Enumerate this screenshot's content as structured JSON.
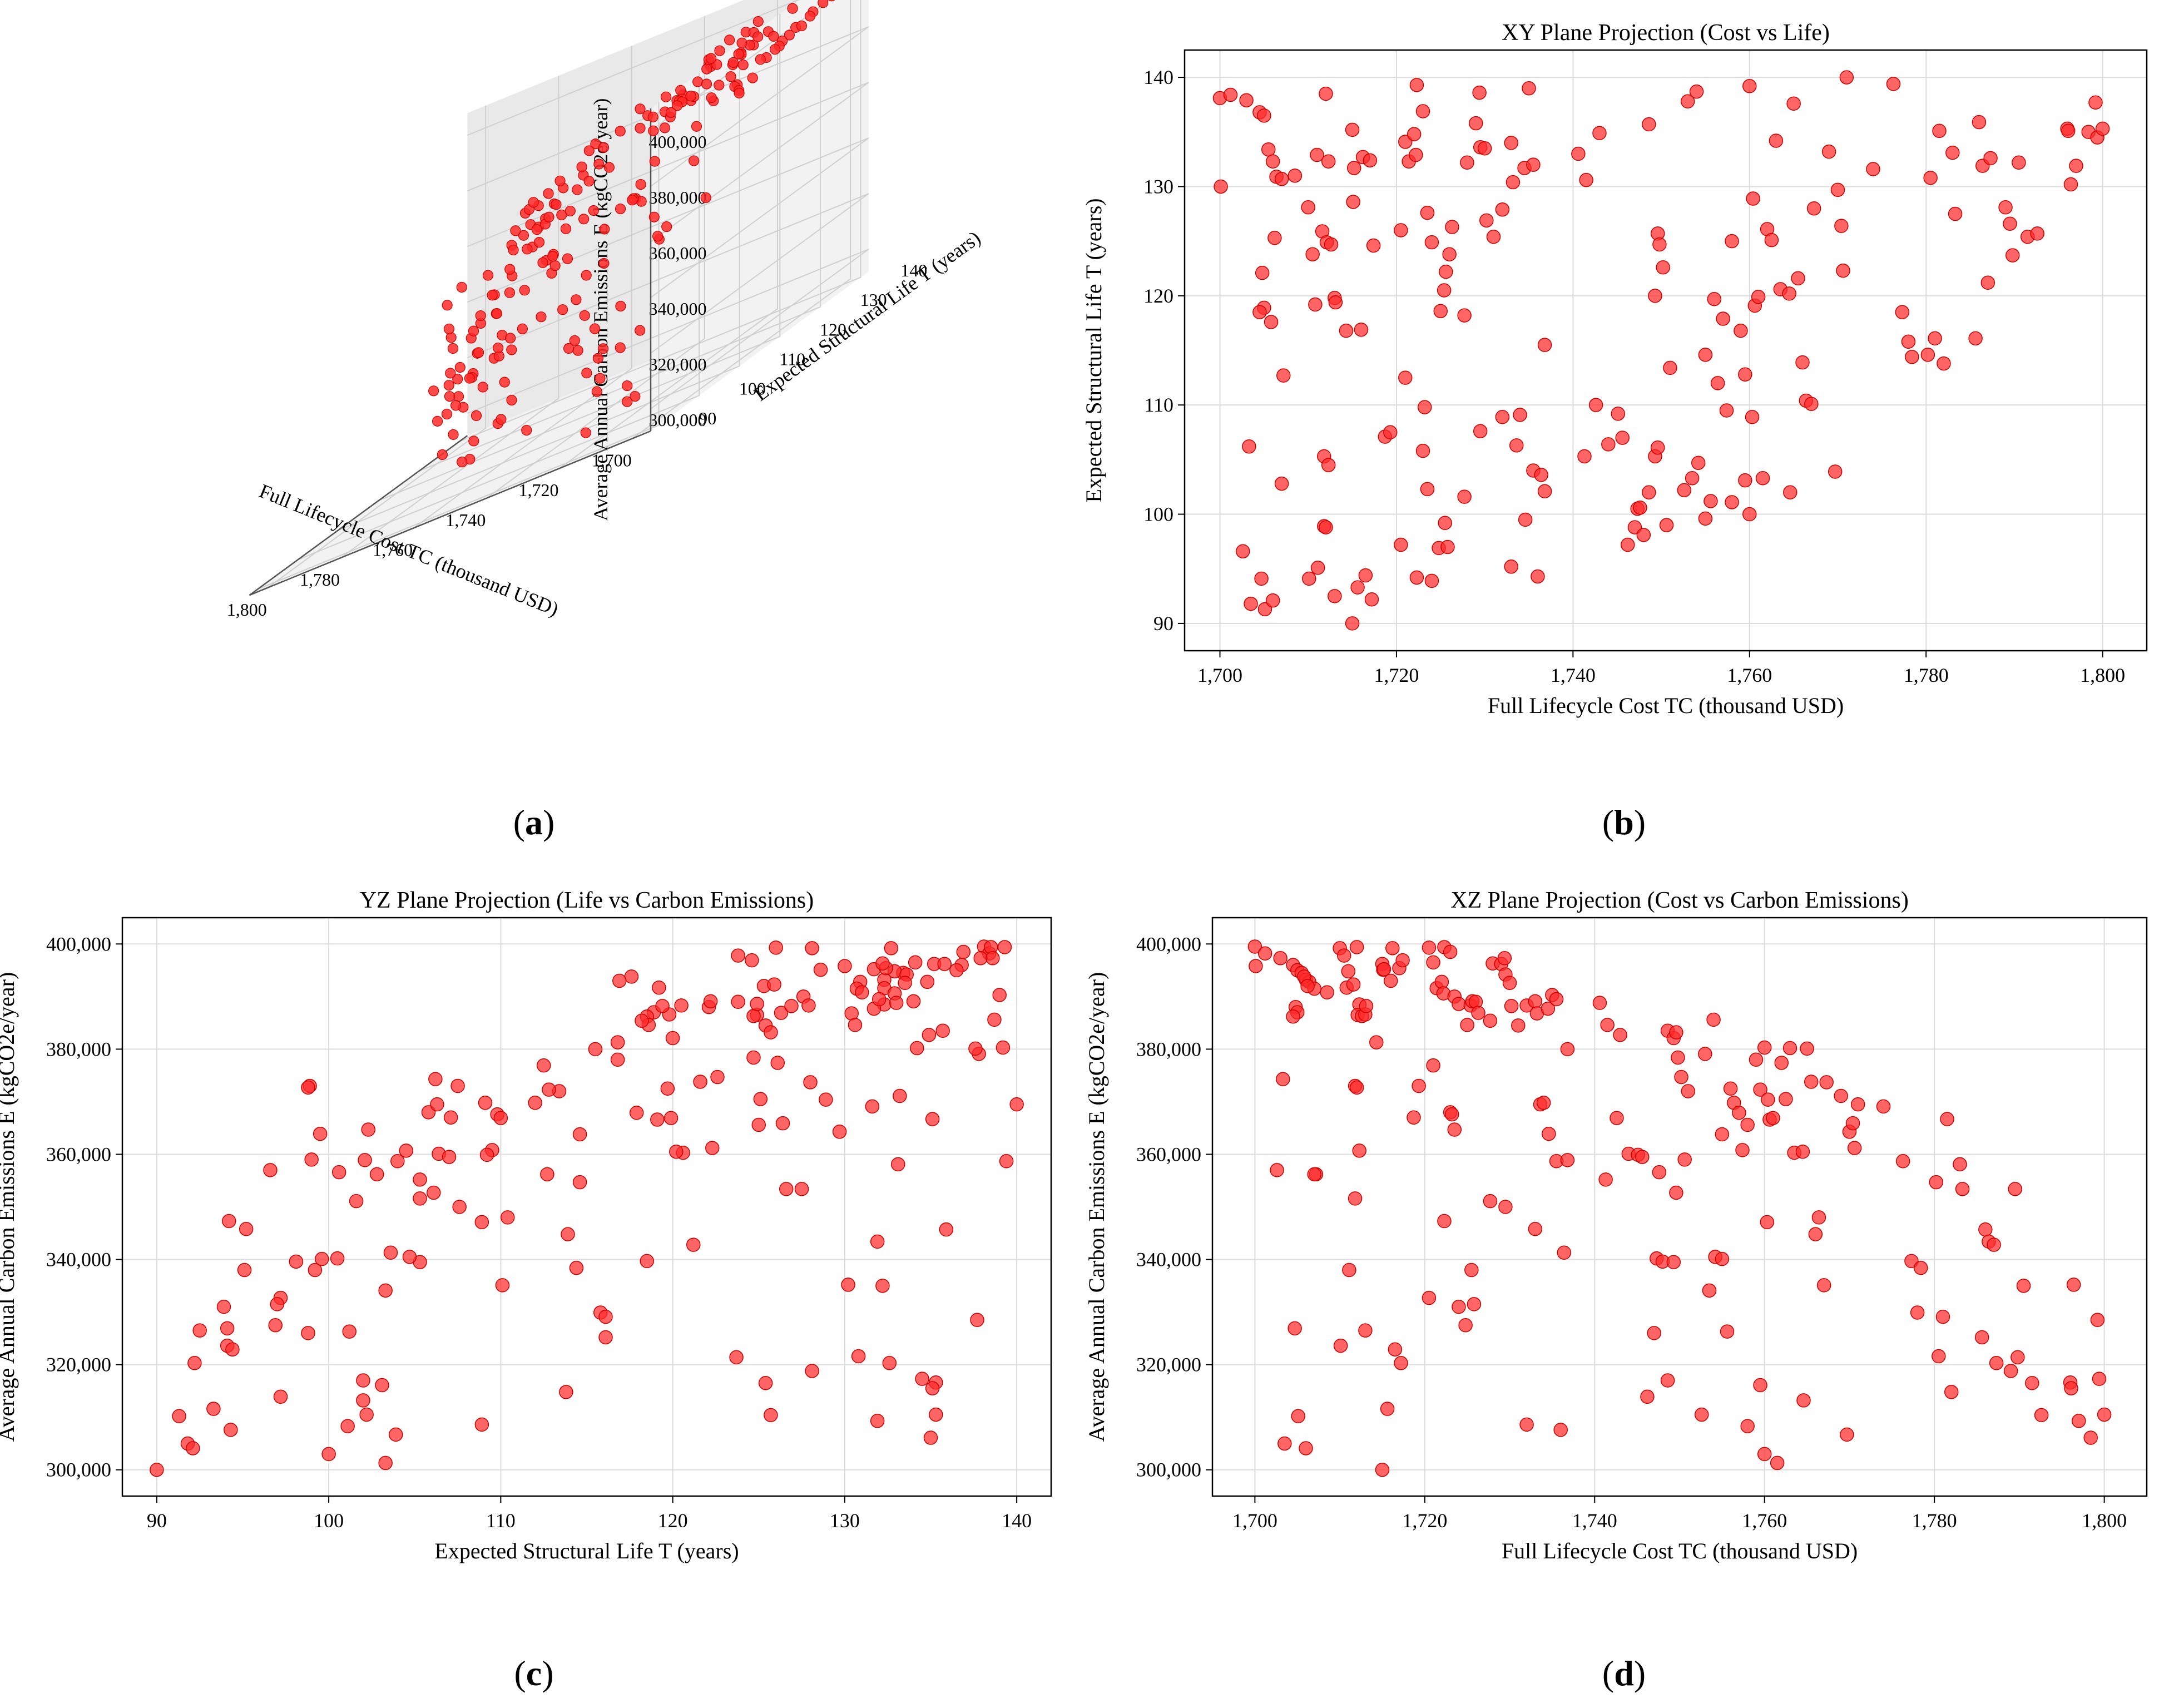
{
  "colors": {
    "point_fill": "#ff2a2a",
    "point_stroke": "#cc0000",
    "grid": "#dcdcdc",
    "axis": "#000000",
    "pane": "#f2f2f2",
    "pane_side": "#e9e9e9"
  },
  "panels": {
    "a": {
      "caption": "a"
    },
    "b": {
      "caption": "b"
    },
    "c": {
      "caption": "c"
    },
    "d": {
      "caption": "d"
    }
  },
  "chart_data": [
    {
      "id": "a",
      "type": "scatter",
      "projection": "3d",
      "title": "",
      "xlabel": "Full Lifecycle Cost TC (thousand USD)",
      "ylabel": "Expected Structural Life T (years)",
      "zlabel": "Average Annual Carbon Emissions E (kgCO2e/year)",
      "xlim": [
        1695,
        1805
      ],
      "ylim": [
        88,
        142
      ],
      "zlim": [
        292000,
        408000
      ],
      "xticks": [
        "1,700",
        "1,720",
        "1,740",
        "1,760",
        "1,780",
        "1,800"
      ],
      "yticks": [
        "90",
        "100",
        "110",
        "120",
        "130",
        "140"
      ],
      "zticks": [
        "300,000",
        "320,000",
        "340,000",
        "360,000",
        "380,000",
        "400,000"
      ],
      "points_ref": "shared_points",
      "grid": true
    },
    {
      "id": "b",
      "type": "scatter",
      "title": "XY Plane Projection (Cost vs Life)",
      "xlabel": "Full Lifecycle Cost TC (thousand USD)",
      "ylabel": "Expected Structural Life T (years)",
      "xlim": [
        1696,
        1805
      ],
      "ylim": [
        87.5,
        142.5
      ],
      "xticks": [
        "1,700",
        "1,720",
        "1,740",
        "1,760",
        "1,780",
        "1,800"
      ],
      "yticks": [
        "90",
        "100",
        "110",
        "120",
        "130",
        "140"
      ],
      "x_field": "tc",
      "y_field": "t",
      "grid": true
    },
    {
      "id": "c",
      "type": "scatter",
      "title": "YZ Plane Projection (Life vs Carbon Emissions)",
      "xlabel": "Expected Structural Life T (years)",
      "ylabel": "Average Annual Carbon Emissions E (kgCO2e/year)",
      "xlim": [
        88,
        142
      ],
      "ylim": [
        295000,
        405000
      ],
      "xticks": [
        "90",
        "100",
        "110",
        "120",
        "130",
        "140"
      ],
      "yticks": [
        "300,000",
        "320,000",
        "340,000",
        "360,000",
        "380,000",
        "400,000"
      ],
      "x_field": "t",
      "y_field": "e",
      "grid": true
    },
    {
      "id": "d",
      "type": "scatter",
      "title": "XZ Plane Projection (Cost vs Carbon Emissions)",
      "xlabel": "Full Lifecycle Cost TC (thousand USD)",
      "ylabel": "Average Annual Carbon Emissions E (kgCO2e/year)",
      "xlim": [
        1695,
        1805
      ],
      "ylim": [
        295000,
        405000
      ],
      "xticks": [
        "1,700",
        "1,720",
        "1,740",
        "1,760",
        "1,780",
        "1,800"
      ],
      "yticks": [
        "300,000",
        "320,000",
        "340,000",
        "360,000",
        "380,000",
        "400,000"
      ],
      "x_field": "tc",
      "y_field": "e",
      "grid": true
    }
  ],
  "shared_points": [
    {
      "tc": 1700.0,
      "t": 138.1,
      "e": 399500
    },
    {
      "tc": 1701.2,
      "t": 138.4,
      "e": 398200
    },
    {
      "tc": 1703.0,
      "t": 137.9,
      "e": 397300
    },
    {
      "tc": 1704.5,
      "t": 136.8,
      "e": 396000
    },
    {
      "tc": 1705.0,
      "t": 136.5,
      "e": 395000
    },
    {
      "tc": 1705.5,
      "t": 133.4,
      "e": 394500
    },
    {
      "tc": 1706.0,
      "t": 132.3,
      "e": 393200
    },
    {
      "tc": 1706.4,
      "t": 130.9,
      "e": 392800
    },
    {
      "tc": 1707.0,
      "t": 130.7,
      "e": 391500
    },
    {
      "tc": 1708.5,
      "t": 131.0,
      "e": 390800
    },
    {
      "tc": 1700.1,
      "t": 130.0,
      "e": 395800
    },
    {
      "tc": 1704.8,
      "t": 122.1,
      "e": 388000
    },
    {
      "tc": 1705.0,
      "t": 118.9,
      "e": 387000
    },
    {
      "tc": 1704.5,
      "t": 118.5,
      "e": 386200
    },
    {
      "tc": 1705.8,
      "t": 117.6,
      "e": 393800
    },
    {
      "tc": 1706.2,
      "t": 125.3,
      "e": 392000
    },
    {
      "tc": 1710.0,
      "t": 128.1,
      "e": 399200
    },
    {
      "tc": 1710.5,
      "t": 123.8,
      "e": 397800
    },
    {
      "tc": 1710.8,
      "t": 119.2,
      "e": 391700
    },
    {
      "tc": 1711.0,
      "t": 132.9,
      "e": 394800
    },
    {
      "tc": 1711.6,
      "t": 125.9,
      "e": 392300
    },
    {
      "tc": 1712.0,
      "t": 138.5,
      "e": 399400
    },
    {
      "tc": 1712.3,
      "t": 132.3,
      "e": 388500
    },
    {
      "tc": 1712.1,
      "t": 124.9,
      "e": 386500
    },
    {
      "tc": 1712.6,
      "t": 124.7,
      "e": 386300
    },
    {
      "tc": 1713.0,
      "t": 119.8,
      "e": 386600
    },
    {
      "tc": 1713.1,
      "t": 119.4,
      "e": 388200
    },
    {
      "tc": 1714.3,
      "t": 116.8,
      "e": 381300
    },
    {
      "tc": 1715.0,
      "t": 135.2,
      "e": 396200
    },
    {
      "tc": 1715.1,
      "t": 128.6,
      "e": 395100
    },
    {
      "tc": 1715.2,
      "t": 131.7,
      "e": 395200
    },
    {
      "tc": 1716.0,
      "t": 116.9,
      "e": 393000
    },
    {
      "tc": 1716.2,
      "t": 132.7,
      "e": 399200
    },
    {
      "tc": 1717.0,
      "t": 132.4,
      "e": 395400
    },
    {
      "tc": 1717.4,
      "t": 124.6,
      "e": 396900
    },
    {
      "tc": 1720.5,
      "t": 126.0,
      "e": 399300
    },
    {
      "tc": 1721.0,
      "t": 134.1,
      "e": 396500
    },
    {
      "tc": 1721.4,
      "t": 132.3,
      "e": 391600
    },
    {
      "tc": 1722.0,
      "t": 134.8,
      "e": 392800
    },
    {
      "tc": 1722.2,
      "t": 132.9,
      "e": 390600
    },
    {
      "tc": 1722.3,
      "t": 139.3,
      "e": 399400
    },
    {
      "tc": 1723.0,
      "t": 136.9,
      "e": 398500
    },
    {
      "tc": 1723.5,
      "t": 127.6,
      "e": 390000
    },
    {
      "tc": 1724.0,
      "t": 124.9,
      "e": 388600
    },
    {
      "tc": 1725.0,
      "t": 118.6,
      "e": 384600
    },
    {
      "tc": 1725.4,
      "t": 120.5,
      "e": 388300
    },
    {
      "tc": 1725.6,
      "t": 122.2,
      "e": 389100
    },
    {
      "tc": 1726.0,
      "t": 123.8,
      "e": 389000
    },
    {
      "tc": 1726.3,
      "t": 126.3,
      "e": 386900
    },
    {
      "tc": 1727.7,
      "t": 118.2,
      "e": 385400
    },
    {
      "tc": 1728.0,
      "t": 132.2,
      "e": 396300
    },
    {
      "tc": 1729.0,
      "t": 135.8,
      "e": 396200
    },
    {
      "tc": 1729.4,
      "t": 138.6,
      "e": 397300
    },
    {
      "tc": 1729.5,
      "t": 133.6,
      "e": 394200
    },
    {
      "tc": 1730.0,
      "t": 133.5,
      "e": 392600
    },
    {
      "tc": 1730.2,
      "t": 126.9,
      "e": 388200
    },
    {
      "tc": 1731.0,
      "t": 125.4,
      "e": 384500
    },
    {
      "tc": 1732.0,
      "t": 127.9,
      "e": 388300
    },
    {
      "tc": 1733.0,
      "t": 134.0,
      "e": 389100
    },
    {
      "tc": 1733.2,
      "t": 130.4,
      "e": 386800
    },
    {
      "tc": 1734.5,
      "t": 131.7,
      "e": 387700
    },
    {
      "tc": 1735.0,
      "t": 139.0,
      "e": 390300
    },
    {
      "tc": 1735.5,
      "t": 132.0,
      "e": 389500
    },
    {
      "tc": 1736.8,
      "t": 115.5,
      "e": 380000
    },
    {
      "tc": 1740.6,
      "t": 133.0,
      "e": 388800
    },
    {
      "tc": 1741.5,
      "t": 130.6,
      "e": 384600
    },
    {
      "tc": 1743.0,
      "t": 134.9,
      "e": 382700
    },
    {
      "tc": 1748.6,
      "t": 135.7,
      "e": 383500
    },
    {
      "tc": 1749.3,
      "t": 120.0,
      "e": 382100
    },
    {
      "tc": 1749.6,
      "t": 125.7,
      "e": 383200
    },
    {
      "tc": 1749.8,
      "t": 124.7,
      "e": 378400
    },
    {
      "tc": 1750.2,
      "t": 122.6,
      "e": 374700
    },
    {
      "tc": 1751.0,
      "t": 113.4,
      "e": 372000
    },
    {
      "tc": 1753.0,
      "t": 137.8,
      "e": 379100
    },
    {
      "tc": 1754.0,
      "t": 138.7,
      "e": 385600
    },
    {
      "tc": 1755.0,
      "t": 114.6,
      "e": 363800
    },
    {
      "tc": 1756.0,
      "t": 119.7,
      "e": 372500
    },
    {
      "tc": 1756.4,
      "t": 112.0,
      "e": 369800
    },
    {
      "tc": 1757.0,
      "t": 117.9,
      "e": 367900
    },
    {
      "tc": 1757.4,
      "t": 109.5,
      "e": 360800
    },
    {
      "tc": 1758.0,
      "t": 125.0,
      "e": 365600
    },
    {
      "tc": 1759.0,
      "t": 116.8,
      "e": 378000
    },
    {
      "tc": 1759.5,
      "t": 112.8,
      "e": 372300
    },
    {
      "tc": 1760.0,
      "t": 139.2,
      "e": 380300
    },
    {
      "tc": 1760.4,
      "t": 128.9,
      "e": 370400
    },
    {
      "tc": 1760.6,
      "t": 119.1,
      "e": 366600
    },
    {
      "tc": 1761.0,
      "t": 119.9,
      "e": 366900
    },
    {
      "tc": 1762.0,
      "t": 126.1,
      "e": 377400
    },
    {
      "tc": 1762.5,
      "t": 125.1,
      "e": 370500
    },
    {
      "tc": 1763.0,
      "t": 134.2,
      "e": 380200
    },
    {
      "tc": 1763.5,
      "t": 120.6,
      "e": 360300
    },
    {
      "tc": 1764.5,
      "t": 120.2,
      "e": 360500
    },
    {
      "tc": 1765.0,
      "t": 137.6,
      "e": 380100
    },
    {
      "tc": 1765.5,
      "t": 121.6,
      "e": 373800
    },
    {
      "tc": 1766.0,
      "t": 113.9,
      "e": 344800
    },
    {
      "tc": 1766.4,
      "t": 110.4,
      "e": 348000
    },
    {
      "tc": 1767.0,
      "t": 110.1,
      "e": 335100
    },
    {
      "tc": 1767.3,
      "t": 128.0,
      "e": 373700
    },
    {
      "tc": 1769.0,
      "t": 133.2,
      "e": 371100
    },
    {
      "tc": 1770.0,
      "t": 129.7,
      "e": 364300
    },
    {
      "tc": 1770.4,
      "t": 126.4,
      "e": 365900
    },
    {
      "tc": 1770.6,
      "t": 122.3,
      "e": 361200
    },
    {
      "tc": 1771.0,
      "t": 140.0,
      "e": 369500
    },
    {
      "tc": 1774.0,
      "t": 131.6,
      "e": 369100
    },
    {
      "tc": 1776.3,
      "t": 139.4,
      "e": 358700
    },
    {
      "tc": 1777.3,
      "t": 118.5,
      "e": 339700
    },
    {
      "tc": 1778.0,
      "t": 115.8,
      "e": 329900
    },
    {
      "tc": 1778.4,
      "t": 114.4,
      "e": 338400
    },
    {
      "tc": 1780.2,
      "t": 114.6,
      "e": 354700
    },
    {
      "tc": 1780.5,
      "t": 130.8,
      "e": 321600
    },
    {
      "tc": 1781.0,
      "t": 116.1,
      "e": 329100
    },
    {
      "tc": 1781.5,
      "t": 135.1,
      "e": 366700
    },
    {
      "tc": 1782.0,
      "t": 113.8,
      "e": 314800
    },
    {
      "tc": 1783.0,
      "t": 133.1,
      "e": 358100
    },
    {
      "tc": 1783.3,
      "t": 127.5,
      "e": 353400
    },
    {
      "tc": 1785.6,
      "t": 116.1,
      "e": 325200
    },
    {
      "tc": 1786.0,
      "t": 135.9,
      "e": 345700
    },
    {
      "tc": 1786.4,
      "t": 131.9,
      "e": 343400
    },
    {
      "tc": 1787.0,
      "t": 121.2,
      "e": 342800
    },
    {
      "tc": 1787.3,
      "t": 132.6,
      "e": 320300
    },
    {
      "tc": 1789.0,
      "t": 128.1,
      "e": 318800
    },
    {
      "tc": 1789.5,
      "t": 126.6,
      "e": 353400
    },
    {
      "tc": 1789.8,
      "t": 123.7,
      "e": 321400
    },
    {
      "tc": 1790.5,
      "t": 132.2,
      "e": 335000
    },
    {
      "tc": 1791.5,
      "t": 125.4,
      "e": 316500
    },
    {
      "tc": 1792.6,
      "t": 125.7,
      "e": 310400
    },
    {
      "tc": 1796.0,
      "t": 135.3,
      "e": 316600
    },
    {
      "tc": 1796.1,
      "t": 135.1,
      "e": 315500
    },
    {
      "tc": 1796.4,
      "t": 130.2,
      "e": 335200
    },
    {
      "tc": 1797.0,
      "t": 131.9,
      "e": 309300
    },
    {
      "tc": 1798.4,
      "t": 135.0,
      "e": 306100
    },
    {
      "tc": 1799.2,
      "t": 137.7,
      "e": 328500
    },
    {
      "tc": 1799.4,
      "t": 134.5,
      "e": 317300
    },
    {
      "tc": 1800.0,
      "t": 135.3,
      "e": 310500
    },
    {
      "tc": 1703.3,
      "t": 106.2,
      "e": 374300
    },
    {
      "tc": 1707.2,
      "t": 112.7,
      "e": 356200
    },
    {
      "tc": 1707.0,
      "t": 102.8,
      "e": 356200
    },
    {
      "tc": 1703.5,
      "t": 91.8,
      "e": 305000
    },
    {
      "tc": 1705.1,
      "t": 91.3,
      "e": 310200
    },
    {
      "tc": 1706.0,
      "t": 92.1,
      "e": 304100
    },
    {
      "tc": 1704.7,
      "t": 94.1,
      "e": 326900
    },
    {
      "tc": 1702.6,
      "t": 96.6,
      "e": 357000
    },
    {
      "tc": 1710.1,
      "t": 94.1,
      "e": 323600
    },
    {
      "tc": 1711.1,
      "t": 95.1,
      "e": 338000
    },
    {
      "tc": 1711.8,
      "t": 105.3,
      "e": 351600
    },
    {
      "tc": 1712.3,
      "t": 104.5,
      "e": 360700
    },
    {
      "tc": 1711.8,
      "t": 98.9,
      "e": 373000
    },
    {
      "tc": 1712.0,
      "t": 98.8,
      "e": 372700
    },
    {
      "tc": 1713.0,
      "t": 92.5,
      "e": 326500
    },
    {
      "tc": 1715.0,
      "t": 90.0,
      "e": 300000
    },
    {
      "tc": 1715.6,
      "t": 93.3,
      "e": 311600
    },
    {
      "tc": 1716.5,
      "t": 94.4,
      "e": 322900
    },
    {
      "tc": 1717.2,
      "t": 92.2,
      "e": 320300
    },
    {
      "tc": 1718.7,
      "t": 107.1,
      "e": 367000
    },
    {
      "tc": 1719.3,
      "t": 107.5,
      "e": 373000
    },
    {
      "tc": 1720.5,
      "t": 97.2,
      "e": 332700
    },
    {
      "tc": 1721.0,
      "t": 112.5,
      "e": 376900
    },
    {
      "tc": 1722.3,
      "t": 94.2,
      "e": 347300
    },
    {
      "tc": 1723.0,
      "t": 105.8,
      "e": 368000
    },
    {
      "tc": 1723.2,
      "t": 109.8,
      "e": 367600
    },
    {
      "tc": 1723.5,
      "t": 102.3,
      "e": 364700
    },
    {
      "tc": 1724.0,
      "t": 93.9,
      "e": 331000
    },
    {
      "tc": 1724.8,
      "t": 96.9,
      "e": 327500
    },
    {
      "tc": 1725.5,
      "t": 99.2,
      "e": 338000
    },
    {
      "tc": 1725.8,
      "t": 97.0,
      "e": 331500
    },
    {
      "tc": 1727.7,
      "t": 101.6,
      "e": 351100
    },
    {
      "tc": 1729.5,
      "t": 107.6,
      "e": 350000
    },
    {
      "tc": 1732.0,
      "t": 108.9,
      "e": 308600
    },
    {
      "tc": 1733.0,
      "t": 95.2,
      "e": 345800
    },
    {
      "tc": 1733.6,
      "t": 106.3,
      "e": 369500
    },
    {
      "tc": 1734.0,
      "t": 109.1,
      "e": 369800
    },
    {
      "tc": 1734.6,
      "t": 99.5,
      "e": 363900
    },
    {
      "tc": 1735.5,
      "t": 104.0,
      "e": 358700
    },
    {
      "tc": 1736.0,
      "t": 94.3,
      "e": 307600
    },
    {
      "tc": 1736.4,
      "t": 103.6,
      "e": 341300
    },
    {
      "tc": 1736.8,
      "t": 102.1,
      "e": 358900
    },
    {
      "tc": 1741.3,
      "t": 105.3,
      "e": 355200
    },
    {
      "tc": 1742.6,
      "t": 110.0,
      "e": 366900
    },
    {
      "tc": 1744.0,
      "t": 106.4,
      "e": 360100
    },
    {
      "tc": 1745.1,
      "t": 109.2,
      "e": 359900
    },
    {
      "tc": 1745.6,
      "t": 107.0,
      "e": 359500
    },
    {
      "tc": 1746.2,
      "t": 97.2,
      "e": 313900
    },
    {
      "tc": 1747.0,
      "t": 98.8,
      "e": 326000
    },
    {
      "tc": 1747.3,
      "t": 100.5,
      "e": 340200
    },
    {
      "tc": 1747.6,
      "t": 100.6,
      "e": 356600
    },
    {
      "tc": 1748.0,
      "t": 98.1,
      "e": 339600
    },
    {
      "tc": 1748.6,
      "t": 102.0,
      "e": 317000
    },
    {
      "tc": 1749.3,
      "t": 105.3,
      "e": 339500
    },
    {
      "tc": 1749.6,
      "t": 106.1,
      "e": 352700
    },
    {
      "tc": 1750.6,
      "t": 99.0,
      "e": 359000
    },
    {
      "tc": 1752.6,
      "t": 102.2,
      "e": 310500
    },
    {
      "tc": 1753.5,
      "t": 103.3,
      "e": 334100
    },
    {
      "tc": 1754.2,
      "t": 104.7,
      "e": 340500
    },
    {
      "tc": 1755.0,
      "t": 99.6,
      "e": 340100
    },
    {
      "tc": 1755.6,
      "t": 101.2,
      "e": 326300
    },
    {
      "tc": 1758.0,
      "t": 101.1,
      "e": 308300
    },
    {
      "tc": 1759.5,
      "t": 103.1,
      "e": 316100
    },
    {
      "tc": 1760.0,
      "t": 100.0,
      "e": 303000
    },
    {
      "tc": 1760.3,
      "t": 108.9,
      "e": 347100
    },
    {
      "tc": 1761.5,
      "t": 103.3,
      "e": 301300
    },
    {
      "tc": 1764.6,
      "t": 102.0,
      "e": 313200
    },
    {
      "tc": 1769.7,
      "t": 103.9,
      "e": 306700
    }
  ]
}
